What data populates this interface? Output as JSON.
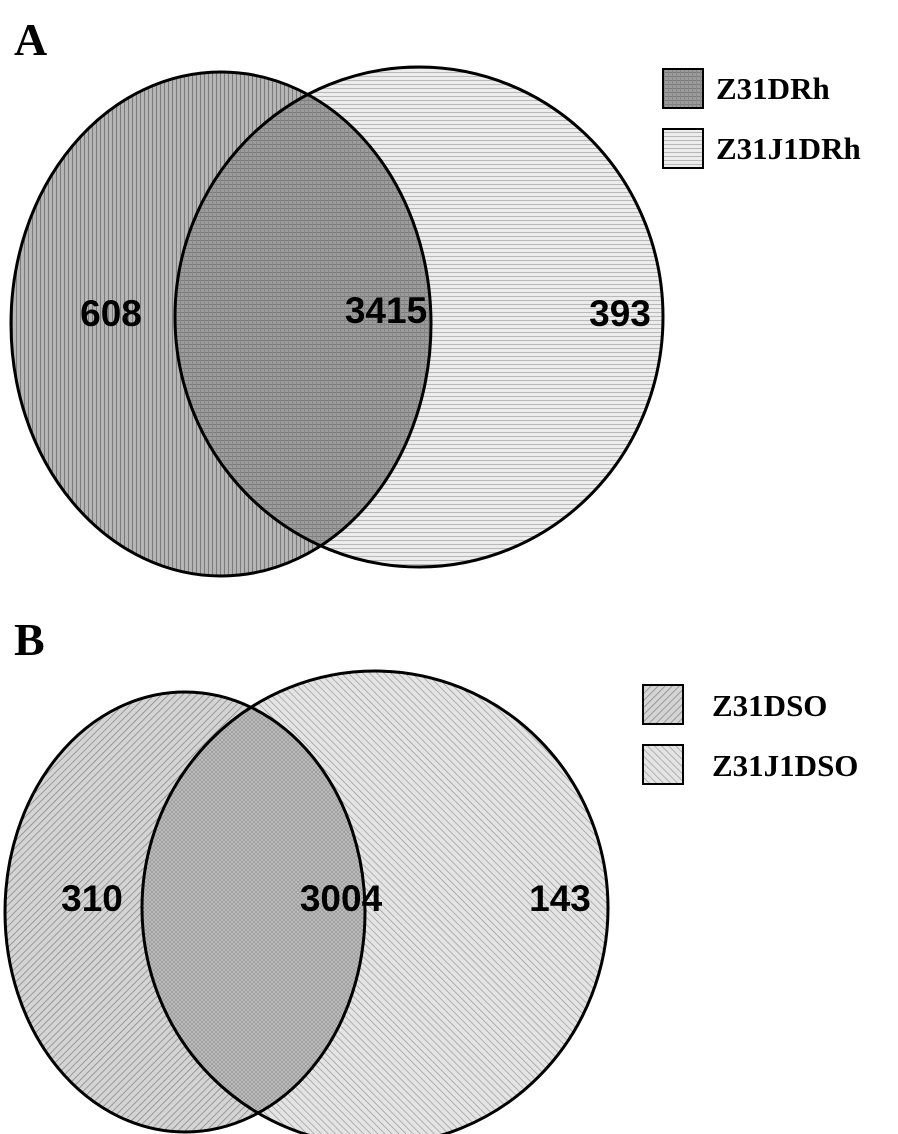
{
  "panels": [
    {
      "letter": "A",
      "left_set": "Z31DRh",
      "right_set": "Z31J1DRh",
      "counts": {
        "left_only": "608",
        "overlap": "3415",
        "right_only": "393"
      },
      "legend": [
        "Z31DRh",
        "Z31J1DRh"
      ]
    },
    {
      "letter": "B",
      "left_set": "Z31DSO",
      "right_set": "Z31J1DSO",
      "counts": {
        "left_only": "310",
        "overlap": "3004",
        "right_only": "143"
      },
      "legend": [
        "Z31DSO",
        "Z31J1DSO"
      ]
    }
  ],
  "colors": {
    "outline": "#000000",
    "panel_a_left_fill": "#a8a8a8",
    "panel_a_right_fill": "#e2e2e2",
    "panel_a_overlap_fill": "#8e8e8e",
    "panel_b_fill": "#c8c8c8",
    "panel_b_overlap_fill": "#b4b4b4"
  }
}
